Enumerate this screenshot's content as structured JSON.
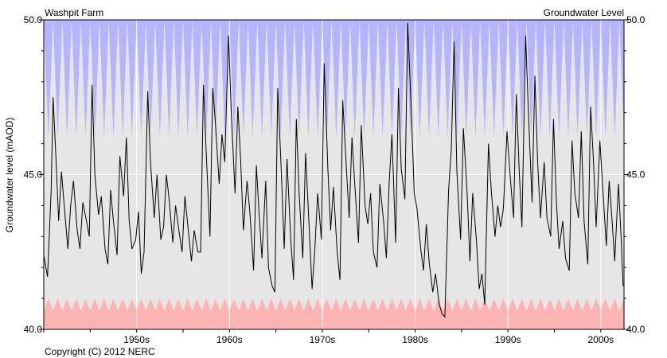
{
  "chart_data": {
    "type": "line",
    "title_left": "Washpit Farm",
    "title_right": "Groundwater Level",
    "ylabel": "Groundwater level (mAOD)",
    "footer": "Copyright (C) 2012 NERC",
    "xlim": [
      1945.0,
      2007.5
    ],
    "ylim": [
      40.0,
      50.0
    ],
    "y_ticks": [
      {
        "value": 40.0,
        "label": "40.0"
      },
      {
        "value": 45.0,
        "label": "45.0"
      },
      {
        "value": 50.0,
        "label": "50.0"
      }
    ],
    "x_tick_labels": [
      {
        "decade": 1950,
        "label": "1950s"
      },
      {
        "decade": 1960,
        "label": "1960s"
      },
      {
        "decade": 1970,
        "label": "1970s"
      },
      {
        "decade": 1980,
        "label": "1980s"
      },
      {
        "decade": 1990,
        "label": "1990s"
      },
      {
        "decade": 2000,
        "label": "2000s"
      }
    ],
    "colors": {
      "background": "#e6e6e6",
      "high_band": "#b4b4ff",
      "low_band": "#ffb4b4",
      "line": "#000000",
      "grid": "#ffffff"
    },
    "high_band": {
      "peak": 50.0,
      "trough": 46.2
    },
    "low_band": {
      "peak": 41.0,
      "trough": 40.6
    },
    "series": [
      {
        "x": [
          1945.0,
          1945.4,
          1945.8,
          1946.0,
          1946.3,
          1946.6,
          1946.9,
          1947.2,
          1947.6,
          1947.9,
          1948.2,
          1948.6,
          1948.9,
          1949.2,
          1949.6,
          1949.9,
          1950.2,
          1950.5,
          1950.9,
          1951.2,
          1951.6,
          1951.9,
          1952.2,
          1952.5,
          1952.9,
          1953.2,
          1953.6,
          1953.9,
          1954.2,
          1954.5,
          1954.9,
          1955.2,
          1955.5,
          1955.8,
          1956.2,
          1956.5,
          1956.9,
          1957.2,
          1957.6,
          1957.9,
          1958.2,
          1958.5,
          1958.9,
          1959.2,
          1959.6,
          1959.9,
          1960.2,
          1960.5,
          1960.9,
          1961.2,
          1961.6,
          1961.9,
          1962.2,
          1962.5,
          1962.9,
          1963.2,
          1963.5,
          1963.9,
          1964.2,
          1964.5,
          1964.9,
          1965.2,
          1965.6,
          1965.9,
          1966.2,
          1966.5,
          1966.9,
          1967.2,
          1967.6,
          1967.9,
          1968.2,
          1968.5,
          1968.9,
          1969.2,
          1969.6,
          1969.9,
          1970.2,
          1970.6,
          1970.9,
          1971.2,
          1971.6,
          1971.9,
          1972.2,
          1972.5,
          1972.9,
          1973.2,
          1973.6,
          1973.9,
          1974.2,
          1974.5,
          1974.9,
          1975.2,
          1975.6,
          1975.9,
          1976.2,
          1976.6,
          1976.9,
          1977.2,
          1977.6,
          1977.9,
          1978.2,
          1978.5,
          1978.9,
          1979.2,
          1979.6,
          1979.9,
          1980.2,
          1980.5,
          1980.9,
          1981.2,
          1981.6,
          1981.9,
          1982.2,
          1982.5,
          1982.9,
          1983.2,
          1983.5,
          1983.9,
          1984.2,
          1984.6,
          1984.9,
          1985.2,
          1985.6,
          1985.9,
          1986.2,
          1986.5,
          1986.9,
          1987.2,
          1987.6,
          1987.9,
          1988.2,
          1988.6,
          1988.9,
          1989.2,
          1989.5,
          1989.9,
          1990.2,
          1990.6,
          1990.9,
          1991.2,
          1991.6,
          1991.9,
          1992.2,
          1992.5,
          1992.9,
          1993.2,
          1993.6,
          1993.9,
          1994.2,
          1994.5,
          1994.9,
          1995.2,
          1995.6,
          1995.9,
          1996.2,
          1996.5,
          1996.9,
          1997.2,
          1997.6,
          1997.9,
          1998.2,
          1998.5,
          1998.9,
          1999.2,
          1999.6,
          1999.9,
          2000.2,
          2000.5,
          2000.9,
          2001.2,
          2001.6,
          2001.9,
          2002.2,
          2002.6,
          2002.9,
          2003.2,
          2003.6,
          2003.9,
          2004.2,
          2004.5,
          2004.9,
          2005.2,
          2005.6,
          2005.9,
          2006.2,
          2006.5,
          2006.9,
          2007.2,
          2007.4
        ],
        "y": [
          42.4,
          41.7,
          44.5,
          47.5,
          45.6,
          43.5,
          45.1,
          44.0,
          42.6,
          44.0,
          44.8,
          43.2,
          42.6,
          44.1,
          43.5,
          43.0,
          47.9,
          45.0,
          43.7,
          44.3,
          42.6,
          42.1,
          44.5,
          43.5,
          42.4,
          45.6,
          44.3,
          46.2,
          43.5,
          42.6,
          42.9,
          43.8,
          41.8,
          42.5,
          47.7,
          45.4,
          43.6,
          45.0,
          42.9,
          43.3,
          45.0,
          44.2,
          42.8,
          44.0,
          43.1,
          42.5,
          44.3,
          43.4,
          42.2,
          43.2,
          42.5,
          42.5,
          47.9,
          45.7,
          43.0,
          47.8,
          46.6,
          44.7,
          46.3,
          45.4,
          49.5,
          47.0,
          44.4,
          47.2,
          45.5,
          43.2,
          44.8,
          43.8,
          41.9,
          45.3,
          43.7,
          42.3,
          44.8,
          42.0,
          41.4,
          41.2,
          47.8,
          45.0,
          42.6,
          45.5,
          42.9,
          41.6,
          46.8,
          44.4,
          42.3,
          45.7,
          43.2,
          41.3,
          42.6,
          44.4,
          42.9,
          48.6,
          45.2,
          43.2,
          44.6,
          42.5,
          41.6,
          47.4,
          45.2,
          43.6,
          46.2,
          44.7,
          42.8,
          46.6,
          44.0,
          43.4,
          44.4,
          42.5,
          42.0,
          44.7,
          43.5,
          42.3,
          44.7,
          46.3,
          42.8,
          47.8,
          45.2,
          44.2,
          49.9,
          47.0,
          44.4,
          43.9,
          42.6,
          41.9,
          43.4,
          42.2,
          41.2,
          41.8,
          40.8,
          40.5,
          40.4,
          44.5,
          45.8,
          49.3,
          45.1,
          42.9,
          46.5,
          44.4,
          42.2,
          44.4,
          42.9,
          41.3,
          41.8,
          40.8,
          46.0,
          44.5,
          43.0,
          44.0,
          43.3,
          43.9,
          46.4,
          45.1,
          43.6,
          47.6,
          45.2,
          43.3,
          49.5,
          47.0,
          44.1,
          48.2,
          45.4,
          43.6,
          45.4,
          43.6,
          43.0,
          46.8,
          44.2,
          42.6,
          43.5,
          42.3,
          41.9,
          46.1,
          44.4,
          43.6,
          46.4,
          43.5,
          42.1,
          47.2,
          45.5,
          43.3,
          46.1,
          44.6,
          42.7,
          44.8,
          43.6,
          42.2,
          44.7,
          42.9,
          41.4
        ]
      }
    ]
  }
}
